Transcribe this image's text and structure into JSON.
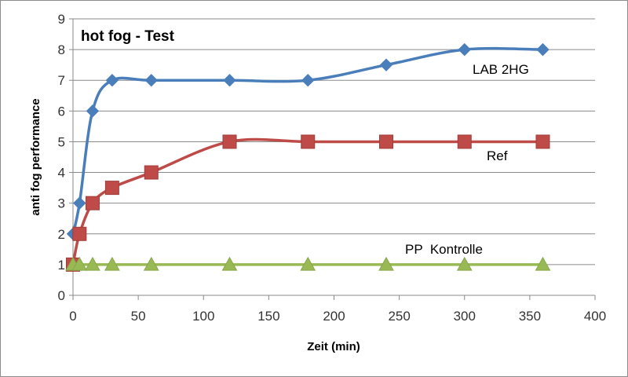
{
  "chart_data": {
    "type": "line",
    "title": "hot fog - Test",
    "xlabel": "Zeit (min)",
    "ylabel": "anti fog performance",
    "xlim": [
      0,
      400
    ],
    "ylim": [
      0,
      9
    ],
    "xticks": [
      0,
      50,
      100,
      150,
      200,
      250,
      300,
      350,
      400
    ],
    "yticks": [
      0,
      1,
      2,
      3,
      4,
      5,
      6,
      7,
      8,
      9
    ],
    "grid": "horizontal",
    "smooth": true,
    "series": [
      {
        "name": "LAB 2HG",
        "color": "#4a7ebb",
        "marker": "diamond",
        "x": [
          0,
          5,
          15,
          30,
          60,
          120,
          180,
          240,
          300,
          360
        ],
        "y": [
          2,
          3,
          6,
          7,
          7,
          7,
          7,
          7.5,
          8,
          8
        ]
      },
      {
        "name": "Ref",
        "color": "#be4b48",
        "marker": "square",
        "x": [
          0,
          5,
          15,
          30,
          60,
          120,
          180,
          240,
          300,
          360
        ],
        "y": [
          1,
          2,
          3,
          3.5,
          4,
          5,
          5,
          5,
          5,
          5
        ]
      },
      {
        "name": "PP  Kontrolle",
        "color": "#98b954",
        "marker": "triangle",
        "x": [
          0,
          5,
          15,
          30,
          60,
          120,
          180,
          240,
          300,
          360
        ],
        "y": [
          1,
          1,
          1,
          1,
          1,
          1,
          1,
          1,
          1,
          1
        ]
      }
    ]
  }
}
